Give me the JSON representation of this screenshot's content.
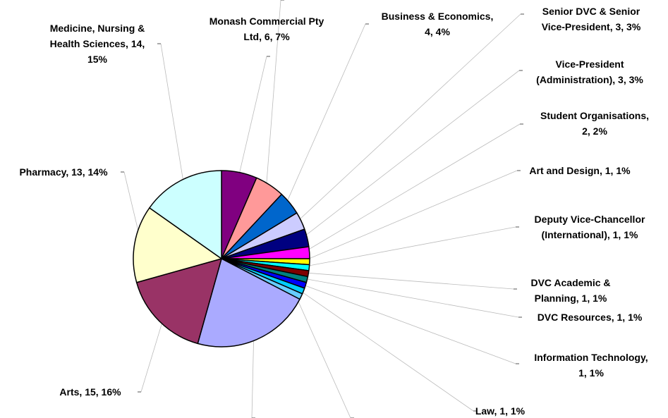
{
  "chart_data": {
    "type": "pie",
    "labels": [
      "Monash Commercial Pty\nLtd, 6, 7%",
      null,
      "Business & Economics,\n4, 4%",
      "Senior DVC & Senior\nVice-President, 3, 3%",
      "Vice-President\n(Administration), 3, 3%",
      "Student Organisations,\n2, 2%",
      "Art and Design, 1, 1%",
      "Deputy Vice-Chancellor\n(International), 1, 1%",
      "DVC Academic &\nPlanning, 1, 1%",
      "DVC Resources, 1, 1%",
      "Information Technology,\n1, 1%",
      "Law, 1, 1%",
      null,
      null,
      "Arts, 15, 16%",
      "Pharmacy, 13, 14%",
      "Medicine, Nursing &\nHealth Sciences, 14,\n15%"
    ],
    "values": [
      6,
      5,
      4,
      3,
      3,
      2,
      1,
      1,
      1,
      1,
      1,
      1,
      1,
      20,
      15,
      13,
      14
    ],
    "colors": [
      "#800080",
      "#ff9999",
      "#0066cc",
      "#ccccff",
      "#000080",
      "#ff00ff",
      "#ffff00",
      "#00ffff",
      "#800000",
      "#008080",
      "#0000ff",
      "#00ccff",
      "#66ccff",
      "#aaaaff",
      "#993366",
      "#ffffcc",
      "#ccffff"
    ]
  }
}
